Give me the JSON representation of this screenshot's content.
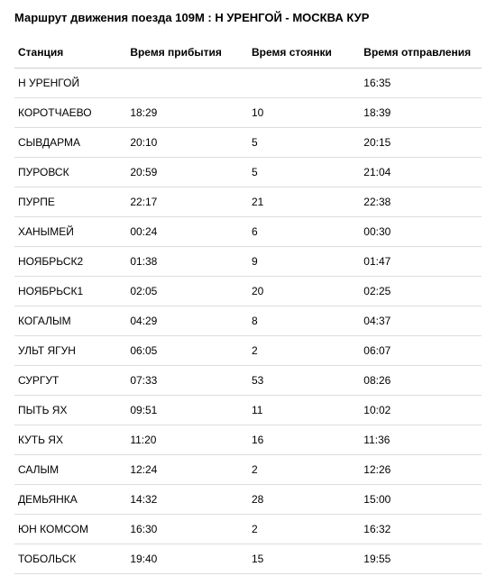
{
  "title": "Маршрут движения поезда 109М : Н УРЕНГОЙ - МОСКВА КУР",
  "columns": {
    "station": "Станция",
    "arrival": "Время прибытия",
    "stop": "Время стоянки",
    "departure": "Время отправления"
  },
  "rows": [
    {
      "station": "Н УРЕНГОЙ",
      "arrival": "",
      "stop": "",
      "departure": "16:35"
    },
    {
      "station": "КОРОТЧАЕВО",
      "arrival": "18:29",
      "stop": "10",
      "departure": "18:39"
    },
    {
      "station": "СЫВДАРМА",
      "arrival": "20:10",
      "stop": "5",
      "departure": "20:15"
    },
    {
      "station": "ПУРОВСК",
      "arrival": "20:59",
      "stop": "5",
      "departure": "21:04"
    },
    {
      "station": "ПУРПЕ",
      "arrival": "22:17",
      "stop": "21",
      "departure": "22:38"
    },
    {
      "station": "ХАНЫМЕЙ",
      "arrival": "00:24",
      "stop": "6",
      "departure": "00:30"
    },
    {
      "station": "НОЯБРЬСК2",
      "arrival": "01:38",
      "stop": "9",
      "departure": "01:47"
    },
    {
      "station": "НОЯБРЬСК1",
      "arrival": "02:05",
      "stop": "20",
      "departure": "02:25"
    },
    {
      "station": "КОГАЛЫМ",
      "arrival": "04:29",
      "stop": "8",
      "departure": "04:37"
    },
    {
      "station": "УЛЬТ ЯГУН",
      "arrival": "06:05",
      "stop": "2",
      "departure": "06:07"
    },
    {
      "station": "СУРГУТ",
      "arrival": "07:33",
      "stop": "53",
      "departure": "08:26"
    },
    {
      "station": "ПЫТЬ ЯХ",
      "arrival": "09:51",
      "stop": "11",
      "departure": "10:02"
    },
    {
      "station": "КУТЬ ЯХ",
      "arrival": "11:20",
      "stop": "16",
      "departure": "11:36"
    },
    {
      "station": "САЛЫМ",
      "arrival": "12:24",
      "stop": "2",
      "departure": "12:26"
    },
    {
      "station": "ДЕМЬЯНКА",
      "arrival": "14:32",
      "stop": "28",
      "departure": "15:00"
    },
    {
      "station": "ЮН КОМСОМ",
      "arrival": "16:30",
      "stop": "2",
      "departure": "16:32"
    },
    {
      "station": "ТОБОЛЬСК",
      "arrival": "19:40",
      "stop": "15",
      "departure": "19:55"
    }
  ],
  "styles": {
    "background_color": "#ffffff",
    "text_color": "#000000",
    "border_color": "#dddddd",
    "title_fontsize": 13,
    "header_fontsize": 12,
    "cell_fontsize": 12,
    "column_widths_pct": [
      24,
      26,
      24,
      26
    ]
  }
}
